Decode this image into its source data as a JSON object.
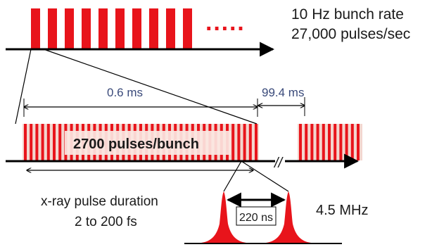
{
  "labels": {
    "rate_line1": "10 Hz bunch rate",
    "rate_line2": "27,000 pulses/sec",
    "bunch_length": "0.6 ms",
    "bunch_gap": "99.4 ms",
    "pulses_per_bunch": "2700 pulses/bunch",
    "duration_line1": "x-ray pulse duration",
    "duration_line2": "2 to 200 fs",
    "pulse_spacing": "220 ns",
    "frequency": "4.5 MHz"
  },
  "ellipsis": "·····",
  "axis_break": "//",
  "colors": {
    "pulse_red": "#e8141b",
    "bunch_band": "#f3d6cf",
    "label_box": "#fbe7e2",
    "axis": "#000000"
  }
}
